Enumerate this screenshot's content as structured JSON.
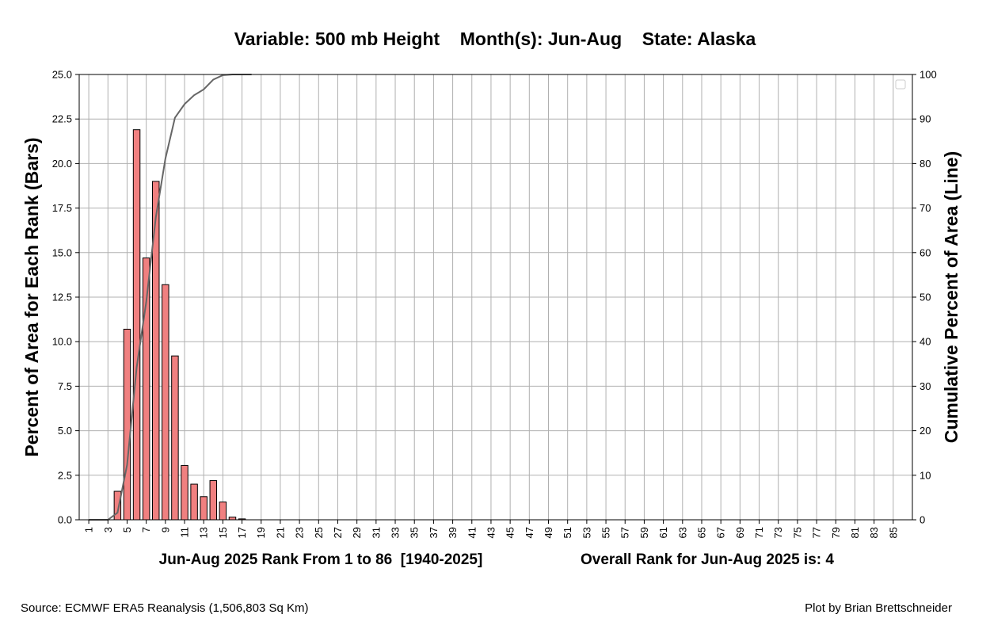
{
  "title": "Variable: 500 mb Height    Month(s): Jun-Aug    State: Alaska",
  "footer": {
    "source": "Source: ECMWF ERA5 Reanalysis (1,506,803 Sq Km)",
    "credit": "Plot by Brian Brettschneider"
  },
  "chart_data": {
    "type": "bar",
    "title": "Variable: 500 mb Height    Month(s): Jun-Aug    State: Alaska",
    "xlabel": "Jun-Aug 2025 Rank From 1 to 86  [1940-2025]",
    "xlabel_right": "Overall Rank for Jun-Aug 2025 is: 4",
    "ylabel": "Percent of Area for Each Rank (Bars)",
    "y2label": "Cumulative Percent of Area (Line)",
    "ylim": [
      0,
      25
    ],
    "y2lim": [
      0,
      100
    ],
    "xlim": [
      0,
      87
    ],
    "yticks": [
      "0.0",
      "2.5",
      "5.0",
      "7.5",
      "10.0",
      "12.5",
      "15.0",
      "17.5",
      "20.0",
      "22.5",
      "25.0"
    ],
    "y2ticks": [
      "0",
      "10",
      "20",
      "30",
      "40",
      "50",
      "60",
      "70",
      "80",
      "90",
      "100"
    ],
    "xticks": [
      "1",
      "3",
      "5",
      "7",
      "9",
      "11",
      "13",
      "15",
      "17",
      "19",
      "21",
      "23",
      "25",
      "27",
      "29",
      "31",
      "33",
      "35",
      "37",
      "39",
      "41",
      "43",
      "45",
      "47",
      "49",
      "51",
      "53",
      "55",
      "57",
      "59",
      "61",
      "63",
      "65",
      "67",
      "69",
      "71",
      "73",
      "75",
      "77",
      "79",
      "81",
      "83",
      "85"
    ],
    "grid": true,
    "legend": "top-right (empty)",
    "series": [
      {
        "name": "Percent of Area for Each Rank",
        "type": "bar",
        "ranks": [
          1,
          2,
          3,
          4,
          5,
          6,
          7,
          8,
          9,
          10,
          11,
          12,
          13,
          14,
          15,
          16,
          17
        ],
        "values": [
          0,
          0,
          0,
          1.6,
          10.7,
          21.9,
          14.7,
          19.0,
          13.2,
          9.2,
          3.05,
          2.0,
          1.3,
          2.2,
          1.0,
          0.15,
          0.05
        ]
      },
      {
        "name": "Cumulative Percent of Area",
        "type": "line",
        "ranks": [
          1,
          2,
          3,
          4,
          5,
          6,
          7,
          8,
          9,
          10,
          11,
          12,
          13,
          14,
          15,
          16,
          17,
          18
        ],
        "values": [
          0,
          0,
          0,
          1.6,
          12.3,
          34.2,
          48.9,
          67.9,
          81.1,
          90.3,
          93.35,
          95.35,
          96.65,
          98.85,
          99.85,
          100,
          100,
          100
        ]
      }
    ]
  }
}
